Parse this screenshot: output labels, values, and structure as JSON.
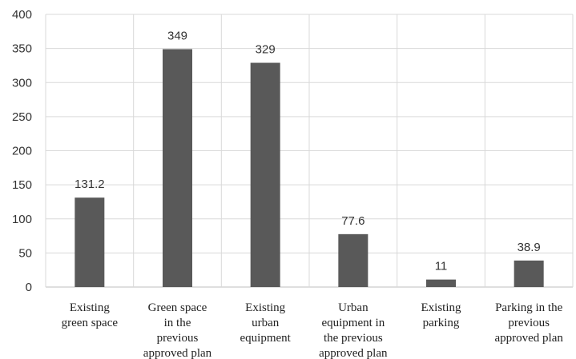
{
  "chart_data": {
    "type": "bar",
    "title": "",
    "xlabel": "",
    "ylabel": "",
    "ylim": [
      0,
      400
    ],
    "yticks": [
      0,
      50,
      100,
      150,
      200,
      250,
      300,
      350,
      400
    ],
    "grid": true,
    "legend": "none",
    "bar_color": "#595959",
    "categories": [
      [
        "Existing",
        "green space"
      ],
      [
        "Green space",
        "in the",
        "previous",
        "approved plan"
      ],
      [
        "Existing",
        "urban",
        "equipment"
      ],
      [
        "Urban",
        "equipment in",
        "the previous",
        "approved plan"
      ],
      [
        "Existing",
        "parking"
      ],
      [
        "Parking in the",
        "previous",
        "approved plan"
      ]
    ],
    "values": [
      131.2,
      349,
      329,
      77.6,
      11,
      38.9
    ],
    "value_labels": [
      "131.2",
      "349",
      "329",
      "77.6",
      "11",
      "38.9"
    ]
  }
}
